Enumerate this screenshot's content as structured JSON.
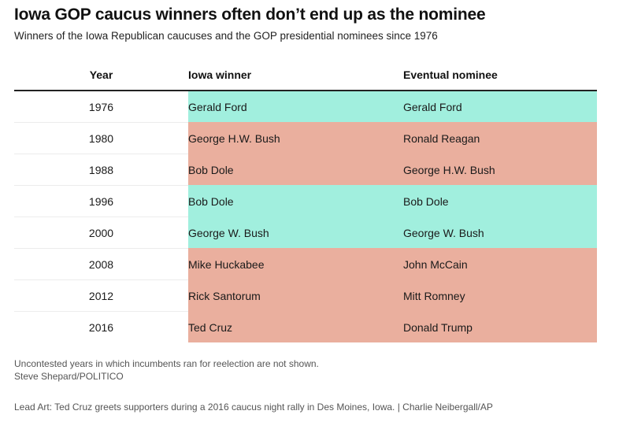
{
  "title": "Iowa GOP caucus winners often don’t end up as the nominee",
  "subtitle": "Winners of the Iowa Republican caucuses and the GOP presidential nominees since 1976",
  "colors": {
    "match": "#a1efde",
    "mismatch": "#eaaf9e"
  },
  "chart_data": {
    "type": "table",
    "columns": [
      "Year",
      "Iowa winner",
      "Eventual nominee"
    ],
    "rows": [
      {
        "year": "1976",
        "iowa_winner": "Gerald Ford",
        "nominee": "Gerald Ford",
        "match": true
      },
      {
        "year": "1980",
        "iowa_winner": "George H.W. Bush",
        "nominee": "Ronald Reagan",
        "match": false
      },
      {
        "year": "1988",
        "iowa_winner": "Bob Dole",
        "nominee": "George H.W. Bush",
        "match": false
      },
      {
        "year": "1996",
        "iowa_winner": "Bob Dole",
        "nominee": "Bob Dole",
        "match": true
      },
      {
        "year": "2000",
        "iowa_winner": "George W. Bush",
        "nominee": "George W. Bush",
        "match": true
      },
      {
        "year": "2008",
        "iowa_winner": "Mike Huckabee",
        "nominee": "John McCain",
        "match": false
      },
      {
        "year": "2012",
        "iowa_winner": "Rick Santorum",
        "nominee": "Mitt Romney",
        "match": false
      },
      {
        "year": "2016",
        "iowa_winner": "Ted Cruz",
        "nominee": "Donald Trump",
        "match": false
      }
    ]
  },
  "footer": {
    "note": "Uncontested years in which incumbents ran for reelection are not shown.",
    "credit": "Steve Shepard/POLITICO",
    "lead_art": "Lead Art: Ted Cruz greets supporters during a 2016 caucus night rally in Des Moines, Iowa. | Charlie Neibergall/AP"
  }
}
